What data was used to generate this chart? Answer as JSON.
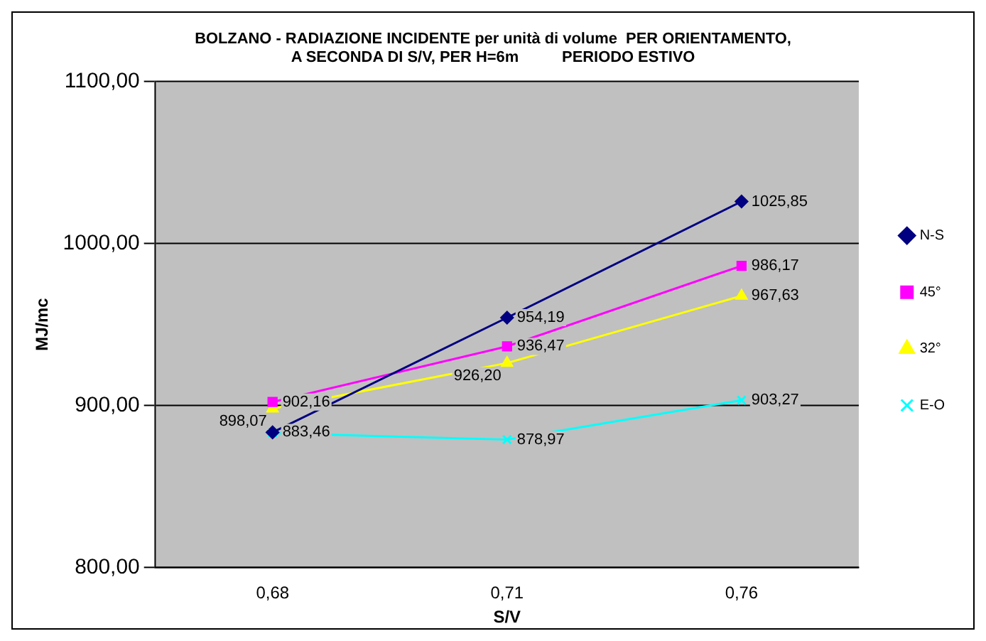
{
  "chart_data": {
    "type": "line",
    "title": [
      "BOLZANO - RADIAZIONE INCIDENTE per unità di volume  PER ORIENTAMENTO,",
      "A SECONDA DI S/V, PER H=6m          PERIODO ESTIVO"
    ],
    "xlabel": "S/V",
    "ylabel": "MJ/mc",
    "categories": [
      "0,68",
      "0,71",
      "0,76"
    ],
    "series": [
      {
        "name": "N-S",
        "color": "#000080",
        "marker": "diamond",
        "values": [
          883.46,
          954.19,
          1025.85
        ],
        "value_labels": [
          "883,46",
          "954,19",
          "1025,85"
        ]
      },
      {
        "name": "45°",
        "color": "#ff00ff",
        "marker": "square",
        "values": [
          902.16,
          936.47,
          986.17
        ],
        "value_labels": [
          "902,16",
          "936,47",
          "986,17"
        ]
      },
      {
        "name": "32°",
        "color": "#ffff00",
        "marker": "triangle",
        "values": [
          898.07,
          926.2,
          967.63
        ],
        "value_labels": [
          "898,07",
          "926,20",
          "967,63"
        ]
      },
      {
        "name": "E-O",
        "color": "#00ffff",
        "marker": "cross",
        "values": [
          883,
          878.97,
          903.27
        ],
        "value_labels": [
          null,
          "878,97",
          "903,27"
        ]
      }
    ],
    "ylim": [
      800,
      1100
    ],
    "yticks": [
      {
        "value": 800,
        "label": "800,00"
      },
      {
        "value": 900,
        "label": "900,00"
      },
      {
        "value": 1000,
        "label": "1000,00"
      },
      {
        "value": 1100,
        "label": "1100,00"
      }
    ],
    "grid": "y",
    "legend": "right",
    "line_style": "solid"
  }
}
